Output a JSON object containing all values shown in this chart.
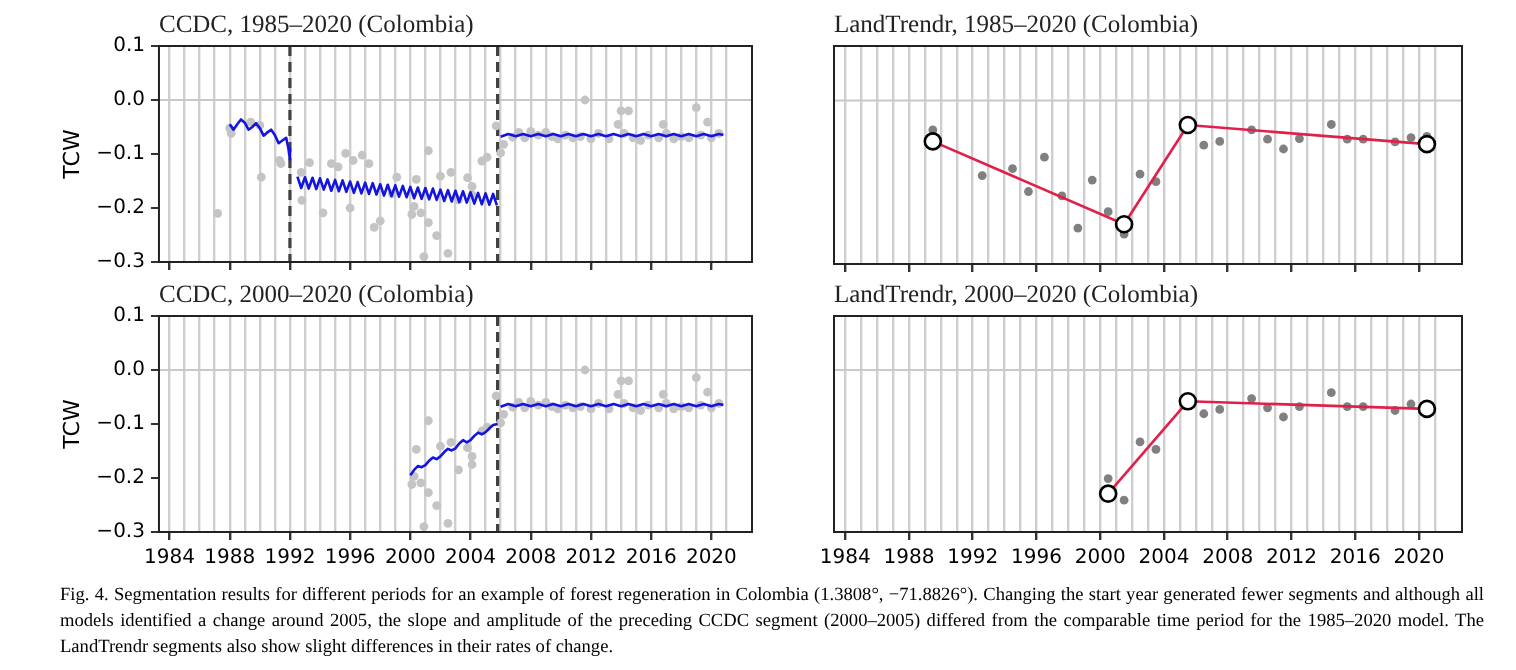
{
  "chart_data": [
    {
      "type": "line",
      "title": "CCDC, 1985–2020 (Colombia)",
      "ylabel": "TCW",
      "grid": "x",
      "tick_labels": "y",
      "xlim": [
        1983.3,
        2022.7
      ],
      "ylim": [
        -0.3,
        0.1
      ],
      "xticks": [
        1984,
        {
          "value": 1985,
          "label": null
        },
        {
          "value": 1986,
          "label": null
        },
        {
          "value": 1987,
          "label": null
        },
        1988,
        {
          "value": 1989,
          "label": null
        },
        {
          "value": 1990,
          "label": null
        },
        {
          "value": 1991,
          "label": null
        },
        1992,
        {
          "value": 1993,
          "label": null
        },
        {
          "value": 1994,
          "label": null
        },
        {
          "value": 1995,
          "label": null
        },
        1996,
        {
          "value": 1997,
          "label": null
        },
        {
          "value": 1998,
          "label": null
        },
        {
          "value": 1999,
          "label": null
        },
        2000,
        {
          "value": 2001,
          "label": null
        },
        {
          "value": 2002,
          "label": null
        },
        {
          "value": 2003,
          "label": null
        },
        2004,
        {
          "value": 2005,
          "label": null
        },
        {
          "value": 2006,
          "label": null
        },
        {
          "value": 2007,
          "label": null
        },
        2008,
        {
          "value": 2009,
          "label": null
        },
        {
          "value": 2010,
          "label": null
        },
        {
          "value": 2011,
          "label": null
        },
        2012,
        {
          "value": 2013,
          "label": null
        },
        {
          "value": 2014,
          "label": null
        },
        {
          "value": 2015,
          "label": null
        },
        2016,
        {
          "value": 2017,
          "label": null
        },
        {
          "value": 2018,
          "label": null
        },
        {
          "value": 2019,
          "label": null
        },
        2020,
        {
          "value": 2021,
          "label": null
        }
      ],
      "yticks": [
        {
          "value": -0.3,
          "label": "−0.3"
        },
        {
          "value": -0.2,
          "label": "−0.2"
        },
        {
          "value": -0.1,
          "label": "−0.1"
        },
        {
          "value": 0,
          "label": "0.0"
        },
        0.1
      ],
      "ref_lines": [
        {
          "axis": "y",
          "value": 0,
          "color": "#c8c8c8",
          "line_style": "solid"
        },
        {
          "axis": "x",
          "value": 1992.0,
          "color": "#404040",
          "line_style": "dashed"
        },
        {
          "axis": "x",
          "value": 2005.8,
          "color": "#404040",
          "line_style": "dashed"
        }
      ],
      "series": [
        {
          "type": "scatter",
          "color": "#c4c4c4",
          "marker": "circle",
          "x": [
            1987.2,
            1988,
            1988.1,
            1989.4,
            1990,
            1990.1,
            1991.3,
            1991.4,
            1992.75,
            1992.8,
            1993.3,
            1994.2,
            1994.75,
            1995.2,
            1995.7,
            1996,
            1996.2,
            1996.8,
            1997.25,
            1997.6,
            1998,
            1998.8,
            1999.1,
            2000.1,
            2000.25,
            2000.4,
            2000.7,
            2000.9,
            2001.2,
            2001.2,
            2001.75,
            2002,
            2002.5,
            2002.7,
            2003.2,
            2003.8,
            2004.1,
            2004.1,
            2004.75,
            2005.1,
            2005.7,
            2006,
            2006.2,
            2006.8,
            2007.2,
            2007.6,
            2008,
            2008.5,
            2009,
            2009.4,
            2009.8,
            2010.3,
            2010.8,
            2011.3,
            2011.6,
            2012,
            2012.5,
            2013.2,
            2013.8,
            2014,
            2014.2,
            2014.5,
            2014.8,
            2015.3,
            2015.8,
            2016.5,
            2016.8,
            2017,
            2017.5,
            2018,
            2018.5,
            2019,
            2019.3,
            2019.75,
            2020,
            2020.5
          ],
          "values": [
            -0.21,
            -0.052,
            -0.062,
            -0.041,
            -0.047,
            -0.143,
            -0.112,
            -0.118,
            -0.134,
            -0.186,
            -0.116,
            -0.209,
            -0.118,
            -0.124,
            -0.099,
            -0.2,
            -0.112,
            -0.102,
            -0.118,
            -0.236,
            -0.224,
            -0.174,
            -0.143,
            -0.212,
            -0.197,
            -0.147,
            -0.209,
            -0.29,
            -0.094,
            -0.227,
            -0.251,
            -0.141,
            -0.284,
            -0.134,
            -0.185,
            -0.144,
            -0.16,
            -0.175,
            -0.113,
            -0.106,
            -0.048,
            -0.098,
            -0.082,
            -0.069,
            -0.06,
            -0.07,
            -0.058,
            -0.065,
            -0.06,
            -0.068,
            -0.072,
            -0.065,
            -0.07,
            -0.068,
            0.0,
            -0.072,
            -0.062,
            -0.072,
            -0.045,
            -0.02,
            -0.062,
            -0.02,
            -0.07,
            -0.075,
            -0.065,
            -0.07,
            -0.045,
            -0.062,
            -0.072,
            -0.068,
            -0.07,
            -0.014,
            -0.065,
            -0.041,
            -0.07,
            -0.062
          ]
        },
        {
          "type": "line",
          "color": "#1414e0",
          "x": [
            1988,
            1988.25,
            1988.5,
            1988.75,
            1989,
            1989.25,
            1989.5,
            1989.75,
            1990,
            1990.25,
            1990.5,
            1990.75,
            1991,
            1991.25,
            1991.5,
            1991.75,
            1991.9,
            1992
          ],
          "values": [
            -0.045,
            -0.055,
            -0.045,
            -0.036,
            -0.042,
            -0.055,
            -0.05,
            -0.043,
            -0.052,
            -0.066,
            -0.06,
            -0.055,
            -0.065,
            -0.08,
            -0.075,
            -0.07,
            -0.09,
            -0.11
          ]
        },
        {
          "type": "line",
          "color": "#1414e0",
          "x": [
            1992.5,
            1992.75,
            1993,
            1993.25,
            1993.5,
            1993.75,
            1994,
            1994.25,
            1994.5,
            1994.75,
            1995,
            1995.25,
            1995.5,
            1995.75,
            1996,
            1996.25,
            1996.5,
            1996.75,
            1997,
            1997.25,
            1997.5,
            1997.75,
            1998,
            1998.25,
            1998.5,
            1998.75,
            1999,
            1999.25,
            1999.5,
            1999.75,
            2000,
            2000.25,
            2000.5,
            2000.75,
            2001,
            2001.25,
            2001.5,
            2001.75,
            2002,
            2002.25,
            2002.5,
            2002.75,
            2003,
            2003.25,
            2003.5,
            2003.75,
            2004,
            2004.25,
            2004.5,
            2004.75,
            2005,
            2005.25,
            2005.5,
            2005.75
          ],
          "values": [
            -0.142,
            -0.163,
            -0.143,
            -0.164,
            -0.144,
            -0.165,
            -0.145,
            -0.166,
            -0.147,
            -0.168,
            -0.148,
            -0.169,
            -0.149,
            -0.17,
            -0.151,
            -0.172,
            -0.152,
            -0.173,
            -0.153,
            -0.174,
            -0.154,
            -0.175,
            -0.156,
            -0.177,
            -0.157,
            -0.178,
            -0.158,
            -0.179,
            -0.159,
            -0.18,
            -0.161,
            -0.182,
            -0.162,
            -0.183,
            -0.163,
            -0.184,
            -0.164,
            -0.185,
            -0.166,
            -0.187,
            -0.167,
            -0.188,
            -0.168,
            -0.189,
            -0.169,
            -0.19,
            -0.171,
            -0.192,
            -0.172,
            -0.193,
            -0.173,
            -0.194,
            -0.174,
            -0.195
          ]
        },
        {
          "type": "line",
          "color": "#1414e0",
          "x": [
            2006,
            2006.5,
            2007,
            2007.5,
            2008,
            2008.5,
            2009,
            2009.5,
            2010,
            2010.5,
            2011,
            2011.5,
            2012,
            2012.5,
            2013,
            2013.5,
            2014,
            2014.5,
            2015,
            2015.5,
            2016,
            2016.5,
            2017,
            2017.5,
            2018,
            2018.5,
            2019,
            2019.5,
            2020,
            2020.5,
            2020.8
          ],
          "values": [
            -0.068,
            -0.063,
            -0.067,
            -0.063,
            -0.067,
            -0.063,
            -0.067,
            -0.063,
            -0.067,
            -0.063,
            -0.067,
            -0.063,
            -0.067,
            -0.063,
            -0.067,
            -0.063,
            -0.067,
            -0.063,
            -0.067,
            -0.063,
            -0.067,
            -0.063,
            -0.067,
            -0.063,
            -0.067,
            -0.063,
            -0.067,
            -0.063,
            -0.067,
            -0.063,
            -0.065
          ]
        }
      ]
    },
    {
      "type": "line",
      "title": "LandTrendr, 1985–2020 (Colombia)",
      "grid": "x",
      "tick_labels": false,
      "xlim": [
        1983.3,
        2022.7
      ],
      "ylim": [
        -0.3,
        0.1
      ],
      "xticks": [
        1984,
        {
          "value": 1985,
          "label": null
        },
        {
          "value": 1986,
          "label": null
        },
        {
          "value": 1987,
          "label": null
        },
        1988,
        {
          "value": 1989,
          "label": null
        },
        {
          "value": 1990,
          "label": null
        },
        {
          "value": 1991,
          "label": null
        },
        1992,
        {
          "value": 1993,
          "label": null
        },
        {
          "value": 1994,
          "label": null
        },
        {
          "value": 1995,
          "label": null
        },
        1996,
        {
          "value": 1997,
          "label": null
        },
        {
          "value": 1998,
          "label": null
        },
        {
          "value": 1999,
          "label": null
        },
        2000,
        {
          "value": 2001,
          "label": null
        },
        {
          "value": 2002,
          "label": null
        },
        {
          "value": 2003,
          "label": null
        },
        2004,
        {
          "value": 2005,
          "label": null
        },
        {
          "value": 2006,
          "label": null
        },
        {
          "value": 2007,
          "label": null
        },
        2008,
        {
          "value": 2009,
          "label": null
        },
        {
          "value": 2010,
          "label": null
        },
        {
          "value": 2011,
          "label": null
        },
        2012,
        {
          "value": 2013,
          "label": null
        },
        {
          "value": 2014,
          "label": null
        },
        {
          "value": 2015,
          "label": null
        },
        2016,
        {
          "value": 2017,
          "label": null
        },
        {
          "value": 2018,
          "label": null
        },
        {
          "value": 2019,
          "label": null
        },
        2020,
        {
          "value": 2021,
          "label": null
        }
      ],
      "ref_lines": [
        {
          "axis": "y",
          "value": 0,
          "color": "#c8c8c8",
          "line_style": "solid"
        }
      ],
      "series": [
        {
          "type": "scatter",
          "color": "#808080",
          "marker": "circle",
          "x": [
            1989.5,
            1992.6,
            1994.5,
            1995.5,
            1996.5,
            1997.6,
            1998.6,
            1999.5,
            2000.5,
            2001.5,
            2002.5,
            2003.5,
            2006.5,
            2007.5,
            2009.5,
            2010.5,
            2011.5,
            2012.5,
            2014.5,
            2015.5,
            2016.5,
            2018.5,
            2019.5,
            2020.5
          ],
          "values": [
            -0.054,
            -0.138,
            -0.125,
            -0.167,
            -0.104,
            -0.175,
            -0.234,
            -0.146,
            -0.204,
            -0.245,
            -0.135,
            -0.149,
            -0.082,
            -0.075,
            -0.054,
            -0.071,
            -0.089,
            -0.07,
            -0.044,
            -0.071,
            -0.071,
            -0.076,
            -0.068,
            -0.066
          ]
        },
        {
          "type": "line",
          "color": "#e0204a",
          "marker": "circle",
          "x": [
            1989.5,
            2001.5,
            2005.5,
            2020.5
          ],
          "values": [
            -0.075,
            -0.227,
            -0.045,
            -0.08
          ]
        }
      ]
    },
    {
      "type": "line",
      "title": "CCDC, 2000–2020 (Colombia)",
      "ylabel": "TCW",
      "grid": "x",
      "xlim": [
        1983.3,
        2022.7
      ],
      "ylim": [
        -0.3,
        0.1
      ],
      "xticks": [
        1984,
        {
          "value": 1985,
          "label": null
        },
        {
          "value": 1986,
          "label": null
        },
        {
          "value": 1987,
          "label": null
        },
        1988,
        {
          "value": 1989,
          "label": null
        },
        {
          "value": 1990,
          "label": null
        },
        {
          "value": 1991,
          "label": null
        },
        1992,
        {
          "value": 1993,
          "label": null
        },
        {
          "value": 1994,
          "label": null
        },
        {
          "value": 1995,
          "label": null
        },
        1996,
        {
          "value": 1997,
          "label": null
        },
        {
          "value": 1998,
          "label": null
        },
        {
          "value": 1999,
          "label": null
        },
        2000,
        {
          "value": 2001,
          "label": null
        },
        {
          "value": 2002,
          "label": null
        },
        {
          "value": 2003,
          "label": null
        },
        2004,
        {
          "value": 2005,
          "label": null
        },
        {
          "value": 2006,
          "label": null
        },
        {
          "value": 2007,
          "label": null
        },
        2008,
        {
          "value": 2009,
          "label": null
        },
        {
          "value": 2010,
          "label": null
        },
        {
          "value": 2011,
          "label": null
        },
        2012,
        {
          "value": 2013,
          "label": null
        },
        {
          "value": 2014,
          "label": null
        },
        {
          "value": 2015,
          "label": null
        },
        2016,
        {
          "value": 2017,
          "label": null
        },
        {
          "value": 2018,
          "label": null
        },
        {
          "value": 2019,
          "label": null
        },
        2020,
        {
          "value": 2021,
          "label": null
        }
      ],
      "yticks": [
        {
          "value": -0.3,
          "label": "−0.3"
        },
        {
          "value": -0.2,
          "label": "−0.2"
        },
        {
          "value": -0.1,
          "label": "−0.1"
        },
        {
          "value": 0,
          "label": "0.0"
        },
        0.1
      ],
      "ref_lines": [
        {
          "axis": "y",
          "value": 0,
          "color": "#c8c8c8",
          "line_style": "solid"
        },
        {
          "axis": "x",
          "value": 2005.8,
          "color": "#404040",
          "line_style": "dashed"
        }
      ],
      "series": [
        {
          "type": "scatter",
          "color": "#c4c4c4",
          "marker": "circle",
          "x": [
            2000.1,
            2000.25,
            2000.4,
            2000.7,
            2000.9,
            2001.2,
            2001.2,
            2001.75,
            2002,
            2002.5,
            2002.7,
            2003.2,
            2003.8,
            2004.1,
            2004.1,
            2004.75,
            2005.1,
            2005.7,
            2006,
            2006.2,
            2006.8,
            2007.2,
            2007.6,
            2008,
            2008.5,
            2009,
            2009.4,
            2009.8,
            2010.3,
            2010.8,
            2011.3,
            2011.6,
            2012,
            2012.5,
            2013.2,
            2013.8,
            2014,
            2014.2,
            2014.5,
            2014.8,
            2015.3,
            2015.8,
            2016.5,
            2016.8,
            2017,
            2017.5,
            2018,
            2018.5,
            2019,
            2019.3,
            2019.75,
            2020,
            2020.5
          ],
          "values": [
            -0.212,
            -0.197,
            -0.147,
            -0.209,
            -0.29,
            -0.094,
            -0.227,
            -0.251,
            -0.141,
            -0.284,
            -0.134,
            -0.185,
            -0.144,
            -0.16,
            -0.175,
            -0.113,
            -0.106,
            -0.048,
            -0.098,
            -0.082,
            -0.069,
            -0.06,
            -0.07,
            -0.058,
            -0.065,
            -0.06,
            -0.068,
            -0.072,
            -0.065,
            -0.07,
            -0.068,
            0.0,
            -0.072,
            -0.062,
            -0.072,
            -0.045,
            -0.02,
            -0.062,
            -0.02,
            -0.07,
            -0.075,
            -0.065,
            -0.07,
            -0.045,
            -0.062,
            -0.072,
            -0.068,
            -0.07,
            -0.014,
            -0.065,
            -0.041,
            -0.07,
            -0.062
          ]
        },
        {
          "type": "line",
          "color": "#1414e0",
          "x": [
            2000,
            2000.25,
            2000.5,
            2000.75,
            2001,
            2001.25,
            2001.5,
            2001.75,
            2002,
            2002.25,
            2002.5,
            2002.75,
            2003,
            2003.25,
            2003.5,
            2003.75,
            2004,
            2004.25,
            2004.5,
            2004.75,
            2005,
            2005.25,
            2005.5,
            2005.8
          ],
          "values": [
            -0.195,
            -0.185,
            -0.178,
            -0.18,
            -0.176,
            -0.168,
            -0.162,
            -0.165,
            -0.16,
            -0.152,
            -0.146,
            -0.149,
            -0.145,
            -0.136,
            -0.13,
            -0.134,
            -0.13,
            -0.122,
            -0.116,
            -0.119,
            -0.115,
            -0.108,
            -0.102,
            -0.1
          ]
        },
        {
          "type": "line",
          "color": "#1414e0",
          "x": [
            2006,
            2006.5,
            2007,
            2007.5,
            2008,
            2008.5,
            2009,
            2009.5,
            2010,
            2010.5,
            2011,
            2011.5,
            2012,
            2012.5,
            2013,
            2013.5,
            2014,
            2014.5,
            2015,
            2015.5,
            2016,
            2016.5,
            2017,
            2017.5,
            2018,
            2018.5,
            2019,
            2019.5,
            2020,
            2020.5,
            2020.8
          ],
          "values": [
            -0.068,
            -0.063,
            -0.067,
            -0.063,
            -0.067,
            -0.063,
            -0.067,
            -0.063,
            -0.067,
            -0.063,
            -0.067,
            -0.063,
            -0.067,
            -0.063,
            -0.067,
            -0.063,
            -0.067,
            -0.063,
            -0.067,
            -0.063,
            -0.067,
            -0.063,
            -0.067,
            -0.063,
            -0.067,
            -0.063,
            -0.067,
            -0.063,
            -0.067,
            -0.063,
            -0.065
          ]
        }
      ]
    },
    {
      "type": "line",
      "title": "LandTrendr, 2000–2020 (Colombia)",
      "grid": "x",
      "tick_labels": "x",
      "xlim": [
        1983.3,
        2022.7
      ],
      "ylim": [
        -0.3,
        0.1
      ],
      "xticks": [
        1984,
        {
          "value": 1985,
          "label": null
        },
        {
          "value": 1986,
          "label": null
        },
        {
          "value": 1987,
          "label": null
        },
        1988,
        {
          "value": 1989,
          "label": null
        },
        {
          "value": 1990,
          "label": null
        },
        {
          "value": 1991,
          "label": null
        },
        1992,
        {
          "value": 1993,
          "label": null
        },
        {
          "value": 1994,
          "label": null
        },
        {
          "value": 1995,
          "label": null
        },
        1996,
        {
          "value": 1997,
          "label": null
        },
        {
          "value": 1998,
          "label": null
        },
        {
          "value": 1999,
          "label": null
        },
        2000,
        {
          "value": 2001,
          "label": null
        },
        {
          "value": 2002,
          "label": null
        },
        {
          "value": 2003,
          "label": null
        },
        2004,
        {
          "value": 2005,
          "label": null
        },
        {
          "value": 2006,
          "label": null
        },
        {
          "value": 2007,
          "label": null
        },
        2008,
        {
          "value": 2009,
          "label": null
        },
        {
          "value": 2010,
          "label": null
        },
        {
          "value": 2011,
          "label": null
        },
        2012,
        {
          "value": 2013,
          "label": null
        },
        {
          "value": 2014,
          "label": null
        },
        {
          "value": 2015,
          "label": null
        },
        2016,
        {
          "value": 2017,
          "label": null
        },
        {
          "value": 2018,
          "label": null
        },
        {
          "value": 2019,
          "label": null
        },
        2020,
        {
          "value": 2021,
          "label": null
        }
      ],
      "ref_lines": [
        {
          "axis": "y",
          "value": 0,
          "color": "#c8c8c8",
          "line_style": "solid"
        }
      ],
      "annotations": [
        "Fig. 4. Segmentation results for different periods for an example of forest regeneration in Colombia (1.3808°, −71.8826°). Changing the start year generated fewer segments and although all models identified a change around 2005, the slope and amplitude of the preceding CCDC segment (2000–2005) differed from the comparable time period for the 1985–2020 model. The LandTrendr segments also show slight differences in their rates of change."
      ],
      "series": [
        {
          "type": "scatter",
          "color": "#808080",
          "marker": "circle",
          "x": [
            2000.5,
            2001.5,
            2002.5,
            2003.5,
            2006.5,
            2007.5,
            2009.5,
            2010.5,
            2011.5,
            2012.5,
            2014.5,
            2015.5,
            2016.5,
            2018.5,
            2019.5
          ],
          "values": [
            -0.201,
            -0.241,
            -0.133,
            -0.147,
            -0.081,
            -0.073,
            -0.053,
            -0.07,
            -0.087,
            -0.068,
            -0.042,
            -0.068,
            -0.068,
            -0.075,
            -0.063
          ]
        },
        {
          "type": "line",
          "color": "#e0204a",
          "marker": "circle",
          "x": [
            2000.5,
            2005.5,
            2020.5
          ],
          "values": [
            -0.229,
            -0.058,
            -0.072
          ]
        }
      ]
    }
  ]
}
